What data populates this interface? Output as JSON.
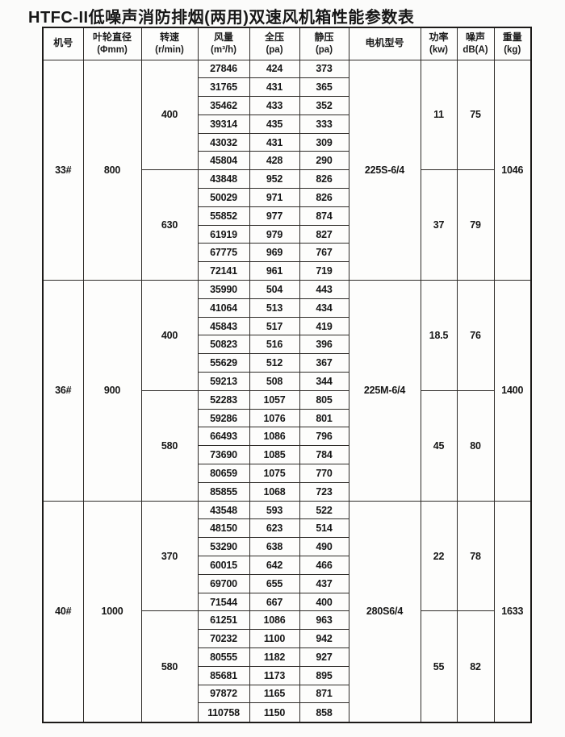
{
  "title": "HTFC-II低噪声消防排烟(两用)双速风机箱性能参数表",
  "table": {
    "headers": [
      {
        "id": "model-no",
        "name": "机号",
        "unit": ""
      },
      {
        "id": "impeller-diameter",
        "name": "叶轮直径",
        "unit": "(Φmm)"
      },
      {
        "id": "speed",
        "name": "转速",
        "unit": "(r/min)"
      },
      {
        "id": "air-volume",
        "name": "风量",
        "unit": "(m³/h)"
      },
      {
        "id": "total-pressure",
        "name": "全压",
        "unit": "(pa)"
      },
      {
        "id": "static-pressure",
        "name": "静压",
        "unit": "(pa)"
      },
      {
        "id": "motor-model",
        "name": "电机型号",
        "unit": ""
      },
      {
        "id": "power",
        "name": "功率",
        "unit": "(kw)"
      },
      {
        "id": "noise",
        "name": "噪声",
        "unit": "dB(A)"
      },
      {
        "id": "weight",
        "name": "重量",
        "unit": "(kg)"
      }
    ],
    "groups": [
      {
        "model": "33#",
        "diameter": "800",
        "motor": "225S-6/4",
        "weight": "1046",
        "subgroups": [
          {
            "speed": "400",
            "power": "11",
            "noise": "75",
            "rows": [
              [
                "27846",
                "424",
                "373"
              ],
              [
                "31765",
                "431",
                "365"
              ],
              [
                "35462",
                "433",
                "352"
              ],
              [
                "39314",
                "435",
                "333"
              ],
              [
                "43032",
                "431",
                "309"
              ],
              [
                "45804",
                "428",
                "290"
              ]
            ]
          },
          {
            "speed": "630",
            "power": "37",
            "noise": "79",
            "rows": [
              [
                "43848",
                "952",
                "826"
              ],
              [
                "50029",
                "971",
                "826"
              ],
              [
                "55852",
                "977",
                "874"
              ],
              [
                "61919",
                "979",
                "827"
              ],
              [
                "67775",
                "969",
                "767"
              ],
              [
                "72141",
                "961",
                "719"
              ]
            ]
          }
        ]
      },
      {
        "model": "36#",
        "diameter": "900",
        "motor": "225M-6/4",
        "weight": "1400",
        "subgroups": [
          {
            "speed": "400",
            "power": "18.5",
            "noise": "76",
            "rows": [
              [
                "35990",
                "504",
                "443"
              ],
              [
                "41064",
                "513",
                "434"
              ],
              [
                "45843",
                "517",
                "419"
              ],
              [
                "50823",
                "516",
                "396"
              ],
              [
                "55629",
                "512",
                "367"
              ],
              [
                "59213",
                "508",
                "344"
              ]
            ]
          },
          {
            "speed": "580",
            "power": "45",
            "noise": "80",
            "rows": [
              [
                "52283",
                "1057",
                "805"
              ],
              [
                "59286",
                "1076",
                "801"
              ],
              [
                "66493",
                "1086",
                "796"
              ],
              [
                "73690",
                "1085",
                "784"
              ],
              [
                "80659",
                "1075",
                "770"
              ],
              [
                "85855",
                "1068",
                "723"
              ]
            ]
          }
        ]
      },
      {
        "model": "40#",
        "diameter": "1000",
        "motor": "280S6/4",
        "weight": "1633",
        "subgroups": [
          {
            "speed": "370",
            "power": "22",
            "noise": "78",
            "rows": [
              [
                "43548",
                "593",
                "522"
              ],
              [
                "48150",
                "623",
                "514"
              ],
              [
                "53290",
                "638",
                "490"
              ],
              [
                "60015",
                "642",
                "466"
              ],
              [
                "69700",
                "655",
                "437"
              ],
              [
                "71544",
                "667",
                "400"
              ]
            ]
          },
          {
            "speed": "580",
            "power": "55",
            "noise": "82",
            "rows": [
              [
                "61251",
                "1086",
                "963"
              ],
              [
                "70232",
                "1100",
                "942"
              ],
              [
                "80555",
                "1182",
                "927"
              ],
              [
                "85681",
                "1173",
                "895"
              ],
              [
                "97872",
                "1165",
                "871"
              ],
              [
                "110758",
                "1150",
                "858"
              ]
            ]
          }
        ]
      }
    ]
  }
}
